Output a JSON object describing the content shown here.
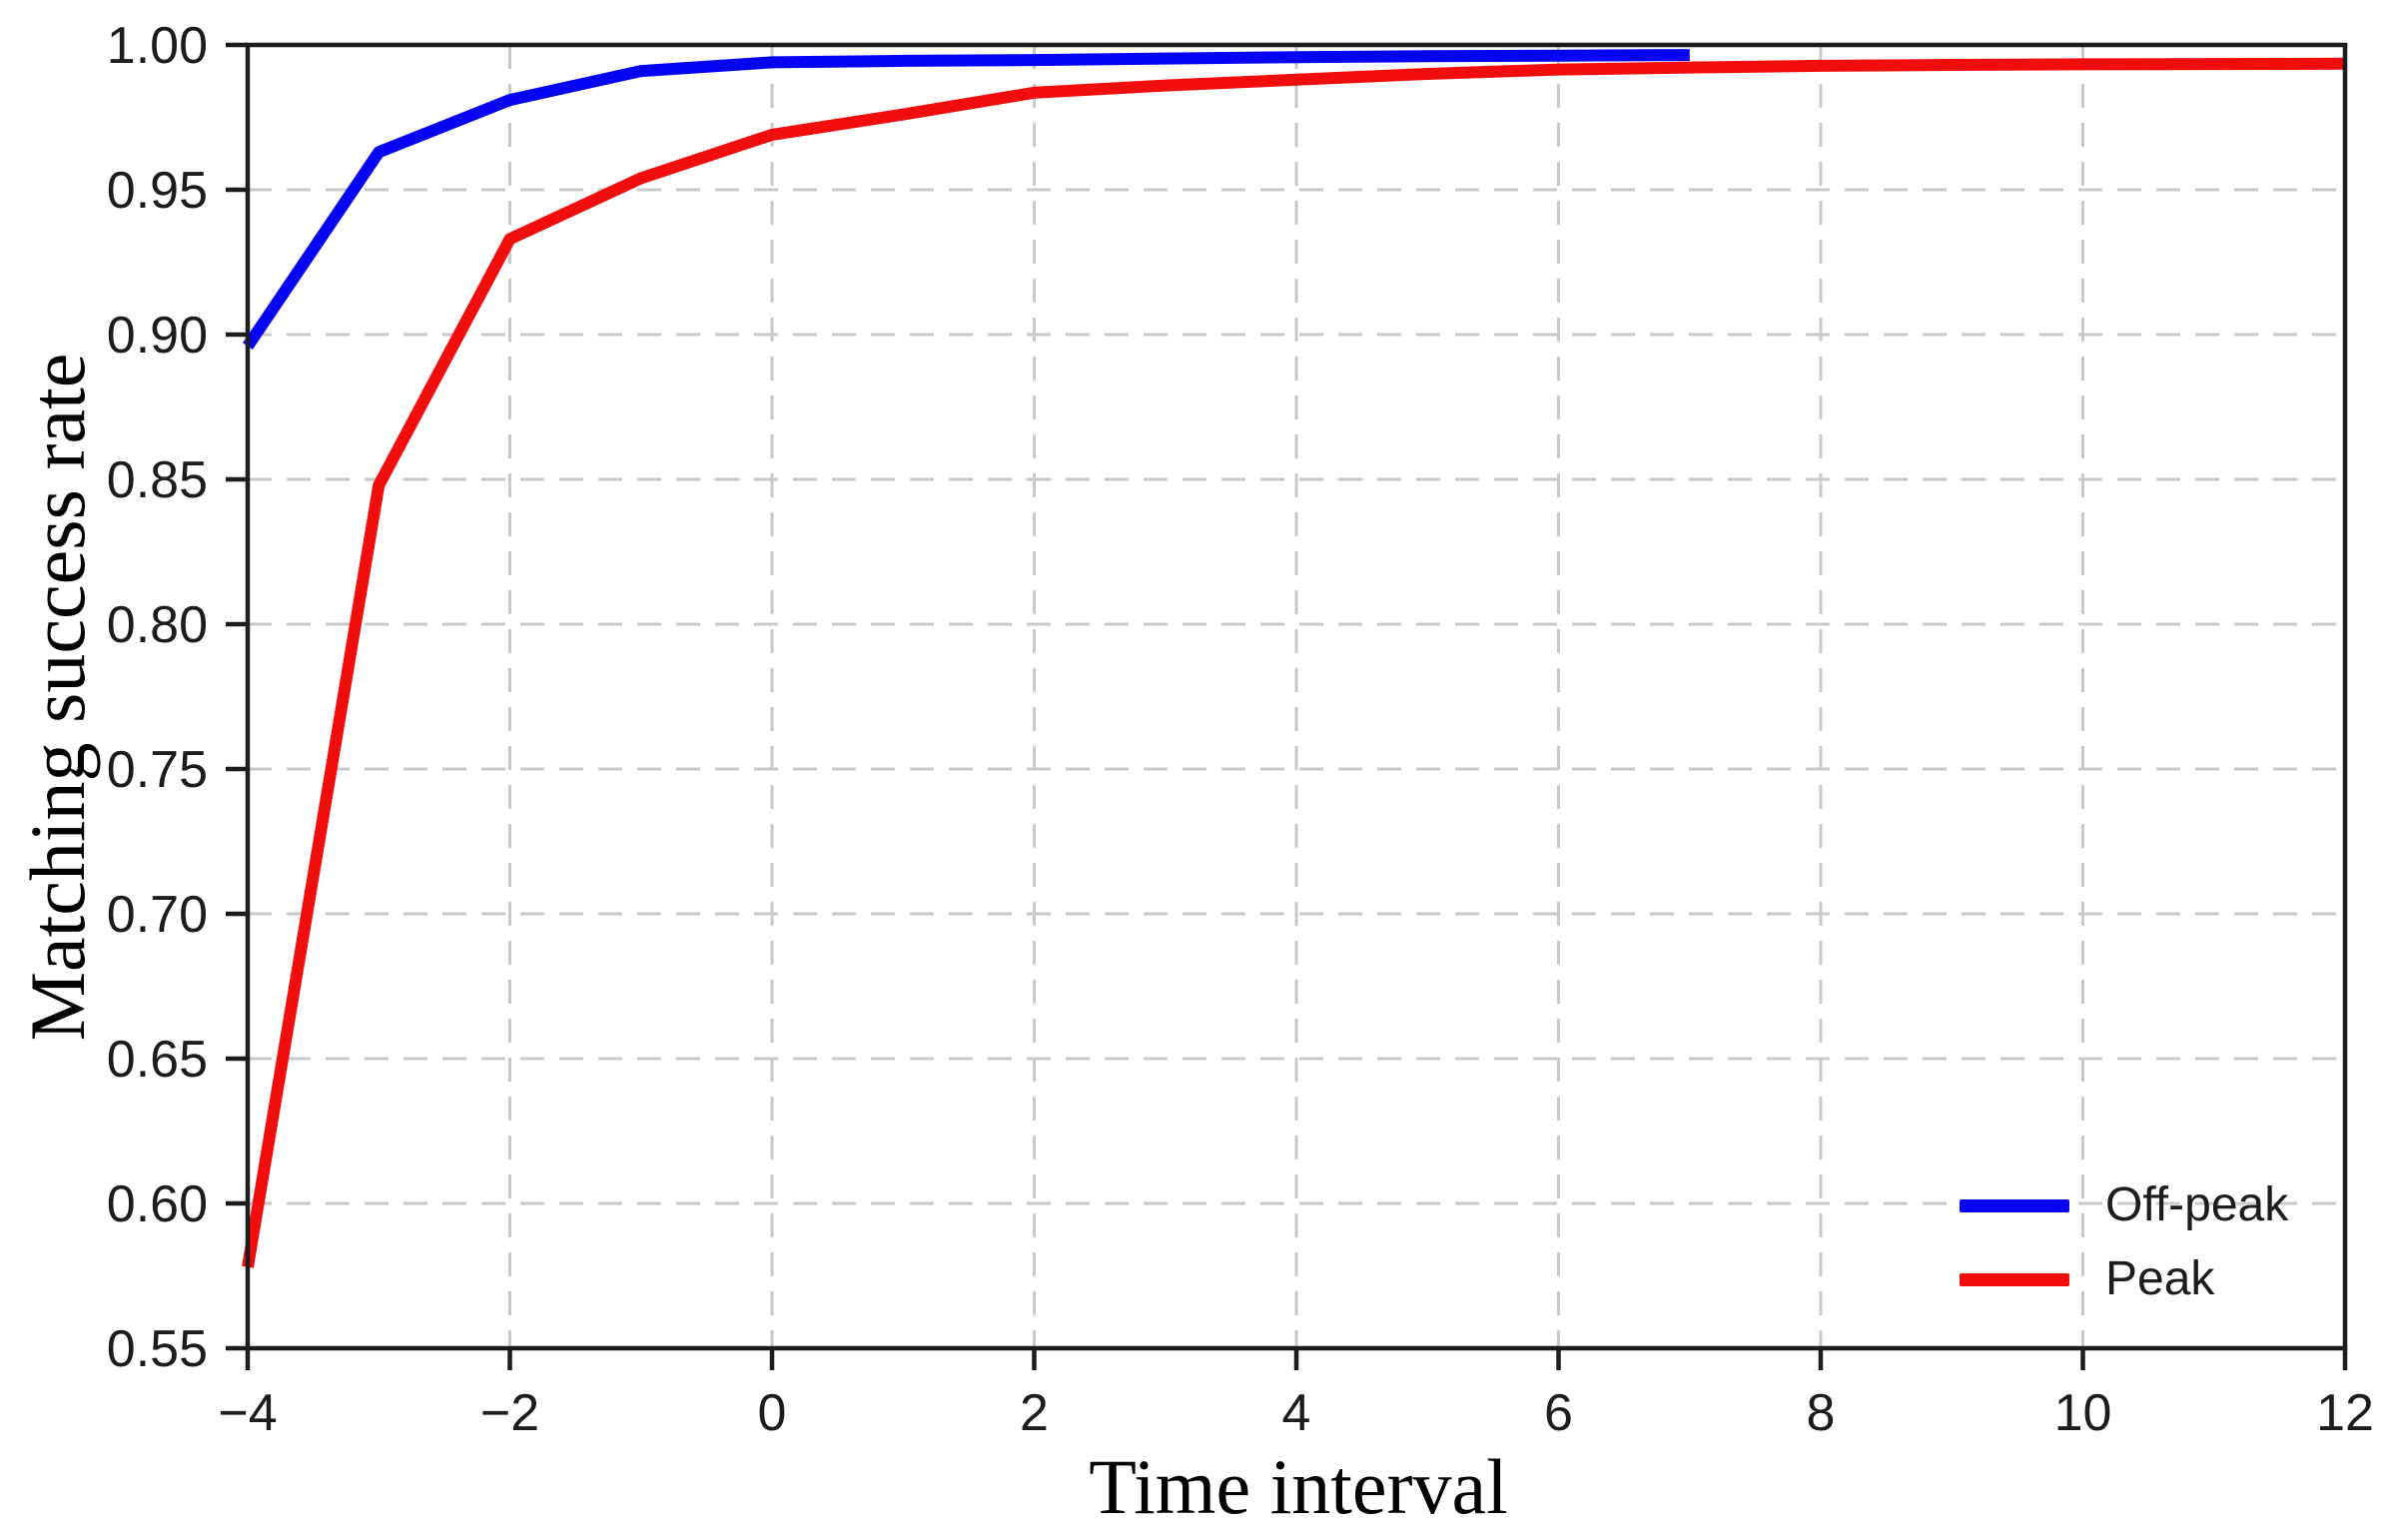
{
  "chart_data": {
    "type": "line",
    "title": "",
    "xlabel": "Time interval",
    "ylabel": "Matching success rate",
    "xlim": [
      -4,
      12
    ],
    "ylim": [
      0.55,
      1.0
    ],
    "grid": true,
    "grid_style": "dashed",
    "grid_color": "#c9c9c9",
    "axis_color": "#1c1c1c",
    "background_color": "#ffffff",
    "legend_position": "lower right",
    "x_ticks": [
      -4,
      -2,
      0,
      2,
      4,
      6,
      8,
      10,
      12
    ],
    "x_tick_labels": [
      "−4",
      "−2",
      "0",
      "2",
      "4",
      "6",
      "8",
      "10",
      "12"
    ],
    "y_ticks": [
      0.55,
      0.6,
      0.65,
      0.7,
      0.75,
      0.8,
      0.85,
      0.9,
      0.95,
      1.0
    ],
    "y_tick_labels": [
      "0.55",
      "0.60",
      "0.65",
      "0.70",
      "0.75",
      "0.80",
      "0.85",
      "0.90",
      "0.95",
      "1.00"
    ],
    "series": [
      {
        "name": "Off-peak",
        "color": "#0404f2",
        "points": [
          [
            -4,
            0.896
          ],
          [
            -3,
            0.963
          ],
          [
            -2,
            0.981
          ],
          [
            -1,
            0.991
          ],
          [
            0,
            0.994
          ],
          [
            1,
            0.9945
          ],
          [
            2,
            0.9948
          ],
          [
            3,
            0.9953
          ],
          [
            4,
            0.9958
          ],
          [
            5,
            0.9961
          ],
          [
            6,
            0.9963
          ],
          [
            7,
            0.9965
          ]
        ]
      },
      {
        "name": "Peak",
        "color": "#f20d0d",
        "points": [
          [
            -4,
            0.578
          ],
          [
            -3,
            0.848
          ],
          [
            -2,
            0.933
          ],
          [
            -1,
            0.954
          ],
          [
            0,
            0.969
          ],
          [
            1,
            0.976
          ],
          [
            2,
            0.9835
          ],
          [
            3,
            0.986
          ],
          [
            4,
            0.988
          ],
          [
            5,
            0.99
          ],
          [
            6,
            0.9915
          ],
          [
            7,
            0.9922
          ],
          [
            8,
            0.9928
          ],
          [
            9,
            0.9931
          ],
          [
            10,
            0.9933
          ],
          [
            11,
            0.9934
          ],
          [
            12,
            0.9935
          ]
        ]
      }
    ]
  }
}
